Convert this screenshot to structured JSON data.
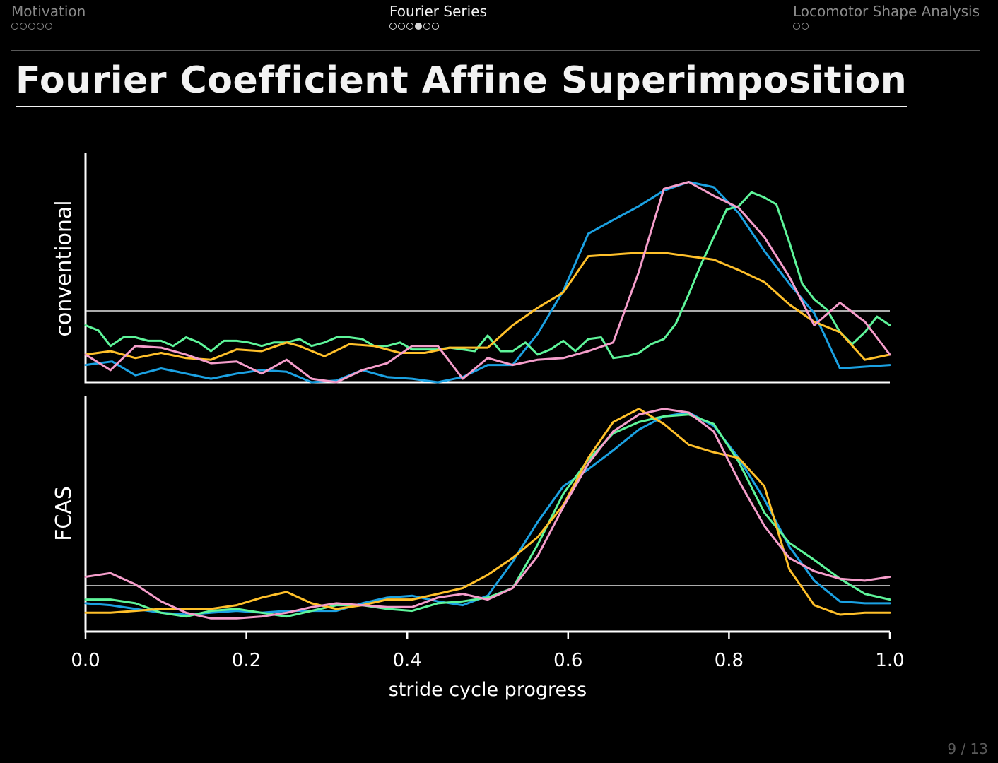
{
  "nav": {
    "sections": [
      {
        "label": "Motivation",
        "total": 5,
        "current": -1,
        "active": false
      },
      {
        "label": "Fourier Series",
        "total": 6,
        "current": 3,
        "active": true
      },
      {
        "label": "Locomotor Shape Analysis",
        "total": 2,
        "current": -1,
        "active": false
      }
    ]
  },
  "slide": {
    "title": "Fourier Coefficient Affine Superimposition",
    "page": "9 / 13"
  },
  "colors": {
    "background": "#000000",
    "series": [
      "#1ba1e2",
      "#5ef59a",
      "#ffc02a",
      "#f59ecb"
    ]
  },
  "chart_data": {
    "type": "line",
    "xlabel": "stride cycle progress",
    "xlim": [
      0,
      1
    ],
    "xticks": [
      "0.0",
      "0.2",
      "0.4",
      "0.6",
      "0.8",
      "1.0"
    ],
    "reference_line": true,
    "panels": [
      {
        "ylabel": "conventional",
        "ylim": [
          -0.33,
          1.0
        ],
        "series": [
          {
            "color": "#1ba1e2",
            "x": [
              0,
              0.033,
              0.062,
              0.094,
              0.125,
              0.156,
              0.188,
              0.219,
              0.25,
              0.281,
              0.312,
              0.344,
              0.375,
              0.406,
              0.438,
              0.469,
              0.5,
              0.531,
              0.562,
              0.594,
              0.625,
              0.656,
              0.688,
              0.719,
              0.75,
              0.781,
              0.812,
              0.844,
              0.875,
              0.906,
              0.938,
              0.969,
              1.0
            ],
            "y": [
              -0.23,
              -0.21,
              -0.29,
              -0.25,
              -0.28,
              -0.31,
              -0.28,
              -0.26,
              -0.27,
              -0.33,
              -0.32,
              -0.26,
              -0.3,
              -0.31,
              -0.33,
              -0.3,
              -0.23,
              -0.23,
              -0.05,
              0.2,
              0.53,
              0.61,
              0.69,
              0.78,
              0.83,
              0.8,
              0.65,
              0.43,
              0.24,
              0.07,
              -0.25,
              -0.24,
              -0.23
            ]
          },
          {
            "color": "#5ef59a",
            "x": [
              0,
              0.016,
              0.031,
              0.047,
              0.062,
              0.078,
              0.094,
              0.109,
              0.125,
              0.141,
              0.156,
              0.172,
              0.188,
              0.203,
              0.219,
              0.234,
              0.25,
              0.266,
              0.281,
              0.297,
              0.312,
              0.328,
              0.344,
              0.359,
              0.375,
              0.391,
              0.406,
              0.422,
              0.438,
              0.453,
              0.469,
              0.484,
              0.5,
              0.516,
              0.531,
              0.547,
              0.562,
              0.578,
              0.594,
              0.609,
              0.625,
              0.641,
              0.656,
              0.672,
              0.688,
              0.703,
              0.719,
              0.734,
              0.75,
              0.766,
              0.781,
              0.797,
              0.812,
              0.828,
              0.844,
              0.859,
              0.875,
              0.891,
              0.906,
              0.922,
              0.938,
              0.953,
              0.969,
              0.984,
              1.0
            ],
            "y": [
              0.0,
              -0.03,
              -0.12,
              -0.07,
              -0.07,
              -0.09,
              -0.09,
              -0.12,
              -0.07,
              -0.1,
              -0.15,
              -0.09,
              -0.09,
              -0.1,
              -0.12,
              -0.1,
              -0.1,
              -0.08,
              -0.12,
              -0.1,
              -0.07,
              -0.07,
              -0.08,
              -0.12,
              -0.12,
              -0.1,
              -0.14,
              -0.14,
              -0.14,
              -0.13,
              -0.14,
              -0.15,
              -0.06,
              -0.15,
              -0.15,
              -0.1,
              -0.17,
              -0.14,
              -0.09,
              -0.15,
              -0.08,
              -0.07,
              -0.19,
              -0.18,
              -0.16,
              -0.11,
              -0.08,
              0.01,
              0.18,
              0.36,
              0.51,
              0.67,
              0.69,
              0.77,
              0.74,
              0.7,
              0.48,
              0.24,
              0.15,
              0.09,
              -0.04,
              -0.11,
              -0.04,
              0.05,
              0.0
            ]
          },
          {
            "color": "#ffc02a",
            "x": [
              0,
              0.031,
              0.062,
              0.094,
              0.125,
              0.156,
              0.188,
              0.219,
              0.25,
              0.266,
              0.297,
              0.328,
              0.359,
              0.391,
              0.422,
              0.453,
              0.469,
              0.5,
              0.531,
              0.562,
              0.594,
              0.625,
              0.656,
              0.688,
              0.719,
              0.75,
              0.781,
              0.812,
              0.844,
              0.875,
              0.906,
              0.938,
              0.969,
              1.0
            ],
            "y": [
              -0.17,
              -0.15,
              -0.19,
              -0.16,
              -0.19,
              -0.2,
              -0.14,
              -0.15,
              -0.1,
              -0.12,
              -0.18,
              -0.11,
              -0.12,
              -0.16,
              -0.16,
              -0.13,
              -0.13,
              -0.13,
              0.0,
              0.1,
              0.19,
              0.4,
              0.41,
              0.42,
              0.42,
              0.4,
              0.38,
              0.32,
              0.25,
              0.12,
              0.02,
              -0.04,
              -0.2,
              -0.17
            ]
          },
          {
            "color": "#f59ecb",
            "x": [
              0,
              0.031,
              0.062,
              0.094,
              0.125,
              0.156,
              0.188,
              0.219,
              0.25,
              0.281,
              0.312,
              0.344,
              0.375,
              0.406,
              0.438,
              0.469,
              0.5,
              0.531,
              0.562,
              0.594,
              0.625,
              0.656,
              0.688,
              0.719,
              0.75,
              0.781,
              0.812,
              0.844,
              0.875,
              0.906,
              0.938,
              0.969,
              1.0
            ],
            "y": [
              -0.17,
              -0.26,
              -0.12,
              -0.13,
              -0.17,
              -0.22,
              -0.21,
              -0.28,
              -0.2,
              -0.31,
              -0.33,
              -0.26,
              -0.22,
              -0.12,
              -0.12,
              -0.31,
              -0.19,
              -0.23,
              -0.2,
              -0.19,
              -0.15,
              -0.1,
              0.31,
              0.79,
              0.83,
              0.75,
              0.68,
              0.51,
              0.28,
              0.0,
              0.13,
              0.02,
              -0.17
            ]
          }
        ]
      },
      {
        "ylabel": "FCAS",
        "ylim": [
          -0.25,
          1.0
        ],
        "series": [
          {
            "color": "#1ba1e2",
            "x": [
              0,
              0.031,
              0.062,
              0.094,
              0.125,
              0.156,
              0.188,
              0.219,
              0.25,
              0.281,
              0.312,
              0.344,
              0.375,
              0.406,
              0.438,
              0.469,
              0.5,
              0.531,
              0.562,
              0.594,
              0.625,
              0.656,
              0.688,
              0.719,
              0.75,
              0.781,
              0.812,
              0.844,
              0.875,
              0.906,
              0.938,
              0.969,
              1.0
            ],
            "y": [
              -0.1,
              -0.11,
              -0.13,
              -0.15,
              -0.16,
              -0.15,
              -0.14,
              -0.15,
              -0.14,
              -0.14,
              -0.14,
              -0.1,
              -0.07,
              -0.06,
              -0.09,
              -0.11,
              -0.06,
              0.12,
              0.33,
              0.52,
              0.61,
              0.71,
              0.82,
              0.89,
              0.91,
              0.84,
              0.67,
              0.45,
              0.2,
              0.02,
              -0.09,
              -0.1,
              -0.1
            ]
          },
          {
            "color": "#5ef59a",
            "x": [
              0,
              0.031,
              0.062,
              0.094,
              0.125,
              0.156,
              0.188,
              0.219,
              0.25,
              0.281,
              0.312,
              0.344,
              0.375,
              0.406,
              0.438,
              0.469,
              0.5,
              0.531,
              0.562,
              0.594,
              0.625,
              0.656,
              0.688,
              0.719,
              0.75,
              0.781,
              0.812,
              0.844,
              0.875,
              0.906,
              0.938,
              0.969,
              1.0
            ],
            "y": [
              -0.08,
              -0.08,
              -0.1,
              -0.15,
              -0.17,
              -0.14,
              -0.13,
              -0.15,
              -0.17,
              -0.14,
              -0.11,
              -0.11,
              -0.13,
              -0.14,
              -0.1,
              -0.09,
              -0.07,
              -0.02,
              0.21,
              0.48,
              0.66,
              0.8,
              0.86,
              0.89,
              0.9,
              0.85,
              0.65,
              0.38,
              0.22,
              0.13,
              0.03,
              -0.05,
              -0.08
            ]
          },
          {
            "color": "#ffc02a",
            "x": [
              0,
              0.031,
              0.062,
              0.094,
              0.125,
              0.156,
              0.188,
              0.219,
              0.25,
              0.281,
              0.312,
              0.344,
              0.375,
              0.406,
              0.438,
              0.469,
              0.5,
              0.531,
              0.562,
              0.594,
              0.625,
              0.656,
              0.688,
              0.719,
              0.75,
              0.781,
              0.812,
              0.844,
              0.875,
              0.906,
              0.938,
              0.969,
              1.0
            ],
            "y": [
              -0.15,
              -0.15,
              -0.14,
              -0.13,
              -0.13,
              -0.13,
              -0.11,
              -0.07,
              -0.04,
              -0.1,
              -0.13,
              -0.11,
              -0.08,
              -0.08,
              -0.05,
              -0.02,
              0.05,
              0.14,
              0.25,
              0.42,
              0.67,
              0.86,
              0.93,
              0.85,
              0.74,
              0.7,
              0.67,
              0.52,
              0.08,
              -0.11,
              -0.16,
              -0.15,
              -0.15
            ]
          },
          {
            "color": "#f59ecb",
            "x": [
              0,
              0.031,
              0.062,
              0.094,
              0.125,
              0.156,
              0.188,
              0.219,
              0.25,
              0.281,
              0.312,
              0.344,
              0.375,
              0.406,
              0.438,
              0.469,
              0.5,
              0.531,
              0.562,
              0.594,
              0.625,
              0.656,
              0.688,
              0.719,
              0.75,
              0.781,
              0.812,
              0.844,
              0.875,
              0.906,
              0.938,
              0.969,
              1.0
            ],
            "y": [
              0.04,
              0.06,
              0.0,
              -0.09,
              -0.15,
              -0.18,
              -0.18,
              -0.17,
              -0.15,
              -0.12,
              -0.1,
              -0.11,
              -0.12,
              -0.12,
              -0.07,
              -0.05,
              -0.08,
              -0.02,
              0.15,
              0.41,
              0.64,
              0.81,
              0.9,
              0.93,
              0.91,
              0.81,
              0.55,
              0.31,
              0.14,
              0.07,
              0.03,
              0.02,
              0.04
            ]
          }
        ]
      }
    ]
  }
}
